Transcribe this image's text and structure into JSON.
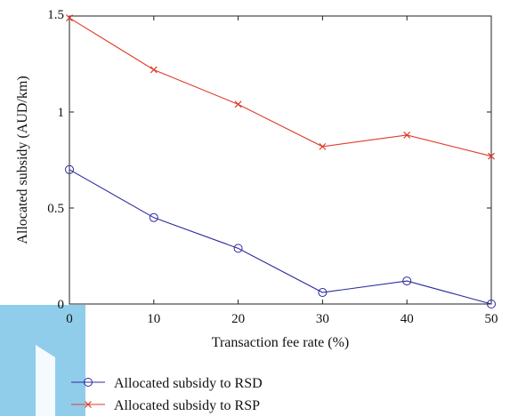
{
  "chart_data": {
    "type": "line",
    "x": [
      0,
      10,
      20,
      30,
      40,
      50
    ],
    "x_ticks": [
      "0",
      "10",
      "20",
      "30",
      "40",
      "50"
    ],
    "y_ticks": [
      "0",
      "0.5",
      "1",
      "1.5"
    ],
    "xlabel": "Transaction fee rate (%)",
    "ylabel": "Allocated subsidy (AUD/km)",
    "xlim": [
      0,
      50
    ],
    "ylim": [
      0,
      1.5
    ],
    "grid": false,
    "legend_position": "bottom-left, below plot",
    "series": [
      {
        "name": "Allocated subsidy to RSD",
        "values": [
          0.7,
          0.45,
          0.29,
          0.06,
          0.12,
          0.0
        ],
        "color": "#2b2b9e",
        "marker": "circle"
      },
      {
        "name": "Allocated subsidy to RSP",
        "values": [
          1.49,
          1.22,
          1.04,
          0.82,
          0.88,
          0.77
        ],
        "color": "#e03a2a",
        "marker": "x"
      }
    ]
  },
  "decor": {
    "watermark_color": "#7cc4e8"
  }
}
